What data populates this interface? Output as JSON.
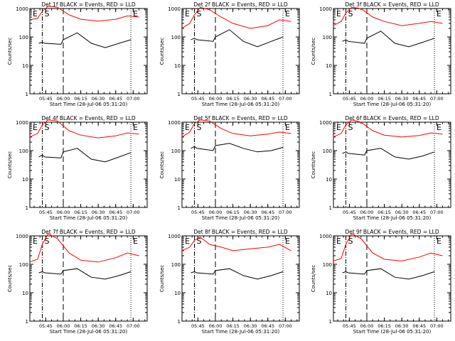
{
  "figure": {
    "xlabel_prefix": "Start Time",
    "ylabel": "Counts/sec",
    "start_time": "28-Jul-06 05:31:20",
    "x_tick_labels": [
      "05:45",
      "06:00",
      "06:15",
      "06:30",
      "06:45",
      "07:00"
    ],
    "y_tick_labels": [
      "1",
      "10",
      "100",
      "1000"
    ],
    "region_letters": [
      "E",
      "S",
      "E"
    ],
    "colors": {
      "events": "#000000",
      "lld": "#ff0000",
      "background": "#ffffff"
    }
  },
  "chart_data": [
    {
      "type": "line",
      "title": "Det 1f BLACK = Events, RED = LLD",
      "y_scale": "log",
      "ylim": [
        1,
        1000
      ],
      "xlim": [
        "05:31:20",
        "07:12:00"
      ],
      "markers": {
        "dash_dot": "05:42",
        "dashed": "06:00",
        "dotted": "06:58"
      },
      "series": [
        {
          "name": "Events",
          "x": [
            "05:39",
            "05:42",
            "05:44",
            "05:58",
            "06:00",
            "06:12",
            "06:24",
            "06:36",
            "06:48",
            "06:58"
          ],
          "y": [
            60,
            65,
            60,
            55,
            80,
            140,
            60,
            42,
            60,
            80
          ]
        },
        {
          "name": "LLD",
          "x": [
            "05:31",
            "05:38",
            "05:42",
            "05:47",
            "05:55",
            "06:05",
            "06:15",
            "06:30",
            "06:45",
            "06:55",
            "07:05"
          ],
          "y": [
            400,
            450,
            800,
            1200,
            1100,
            600,
            420,
            360,
            420,
            550,
            500
          ]
        }
      ]
    },
    {
      "type": "line",
      "title": "Det 2f BLACK = Events, RED = LLD",
      "y_scale": "log",
      "ylim": [
        1,
        1000
      ],
      "xlim": [
        "05:31:20",
        "07:12:00"
      ],
      "markers": {
        "dash_dot": "05:42",
        "dashed": "06:00",
        "dotted": "06:58"
      },
      "series": [
        {
          "name": "Events",
          "x": [
            "05:39",
            "05:42",
            "05:44",
            "05:58",
            "06:00",
            "06:12",
            "06:24",
            "06:36",
            "06:48",
            "06:58"
          ],
          "y": [
            80,
            90,
            80,
            70,
            100,
            180,
            70,
            45,
            70,
            100
          ]
        },
        {
          "name": "LLD",
          "x": [
            "05:31",
            "05:38",
            "05:42",
            "05:47",
            "05:55",
            "06:05",
            "06:15",
            "06:30",
            "06:45",
            "06:55",
            "07:05"
          ],
          "y": [
            200,
            300,
            600,
            1100,
            900,
            500,
            300,
            200,
            250,
            400,
            350
          ]
        }
      ]
    },
    {
      "type": "line",
      "title": "Det 3f BLACK = Events, RED = LLD",
      "y_scale": "log",
      "ylim": [
        1,
        1000
      ],
      "xlim": [
        "05:31:20",
        "07:12:00"
      ],
      "markers": {
        "dash_dot": "05:42",
        "dashed": "06:00",
        "dotted": "06:58"
      },
      "series": [
        {
          "name": "Events",
          "x": [
            "05:39",
            "05:42",
            "05:44",
            "05:58",
            "06:00",
            "06:12",
            "06:24",
            "06:36",
            "06:48",
            "06:58"
          ],
          "y": [
            70,
            80,
            70,
            60,
            90,
            160,
            60,
            45,
            65,
            90
          ]
        },
        {
          "name": "LLD",
          "x": [
            "05:31",
            "05:38",
            "05:42",
            "05:47",
            "05:55",
            "06:05",
            "06:15",
            "06:30",
            "06:45",
            "06:55",
            "07:05"
          ],
          "y": [
            250,
            350,
            700,
            1100,
            1000,
            500,
            350,
            250,
            300,
            350,
            300
          ]
        }
      ]
    },
    {
      "type": "line",
      "title": "Det 4f BLACK = Events, RED = LLD",
      "y_scale": "log",
      "ylim": [
        1,
        1000
      ],
      "xlim": [
        "05:31:20",
        "07:12:00"
      ],
      "markers": {
        "dash_dot": "05:42",
        "dashed": "06:00",
        "dotted": "06:58"
      },
      "series": [
        {
          "name": "Events",
          "x": [
            "05:39",
            "05:42",
            "05:44",
            "05:58",
            "06:00",
            "06:12",
            "06:24",
            "06:36",
            "06:48",
            "06:58"
          ],
          "y": [
            60,
            70,
            60,
            55,
            90,
            120,
            50,
            40,
            60,
            85
          ]
        },
        {
          "name": "LLD",
          "x": [
            "05:31",
            "05:38",
            "05:42",
            "05:47",
            "05:55",
            "06:05",
            "06:15",
            "06:30",
            "06:45",
            "06:55",
            "07:05"
          ],
          "y": [
            300,
            400,
            800,
            1200,
            1100,
            500,
            350,
            280,
            330,
            420,
            380
          ]
        }
      ]
    },
    {
      "type": "line",
      "title": "Det 5f BLACK = Events, RED = LLD",
      "y_scale": "log",
      "ylim": [
        1,
        1000
      ],
      "xlim": [
        "05:31:20",
        "07:12:00"
      ],
      "markers": {
        "dash_dot": "05:42",
        "dashed": "06:00",
        "dotted": "06:58"
      },
      "series": [
        {
          "name": "Events",
          "x": [
            "05:39",
            "05:42",
            "05:44",
            "05:58",
            "06:00",
            "06:12",
            "06:24",
            "06:36",
            "06:48",
            "06:58"
          ],
          "y": [
            120,
            140,
            120,
            100,
            150,
            180,
            120,
            90,
            100,
            130
          ]
        },
        {
          "name": "LLD",
          "x": [
            "05:31",
            "05:38",
            "05:42",
            "05:47",
            "05:55",
            "06:05",
            "06:15",
            "06:30",
            "06:45",
            "06:55",
            "07:05"
          ],
          "y": [
            300,
            450,
            900,
            1200,
            1100,
            600,
            400,
            330,
            380,
            450,
            400
          ]
        }
      ]
    },
    {
      "type": "line",
      "title": "Det 6f BLACK = Events, RED = LLD",
      "y_scale": "log",
      "ylim": [
        1,
        1000
      ],
      "xlim": [
        "05:31:20",
        "07:12:00"
      ],
      "markers": {
        "dash_dot": "05:42",
        "dashed": "06:00",
        "dotted": "06:58"
      },
      "series": [
        {
          "name": "Events",
          "x": [
            "05:39",
            "05:42",
            "05:44",
            "05:58",
            "06:00",
            "06:12",
            "06:24",
            "06:36",
            "06:48",
            "06:58"
          ],
          "y": [
            80,
            90,
            80,
            70,
            100,
            120,
            60,
            50,
            65,
            90
          ]
        },
        {
          "name": "LLD",
          "x": [
            "05:31",
            "05:38",
            "05:42",
            "05:47",
            "05:55",
            "06:05",
            "06:15",
            "06:30",
            "06:45",
            "06:55",
            "07:05"
          ],
          "y": [
            300,
            400,
            800,
            1200,
            1000,
            500,
            350,
            300,
            340,
            420,
            380
          ]
        }
      ]
    },
    {
      "type": "line",
      "title": "Det 7f BLACK = Events, RED = LLD",
      "y_scale": "log",
      "ylim": [
        1,
        1000
      ],
      "xlim": [
        "05:31:20",
        "07:12:00"
      ],
      "markers": {
        "dash_dot": "05:42",
        "dashed": "06:00",
        "dotted": "06:58"
      },
      "series": [
        {
          "name": "Events",
          "x": [
            "05:39",
            "05:42",
            "05:44",
            "05:58",
            "06:00",
            "06:12",
            "06:24",
            "06:36",
            "06:48",
            "06:58"
          ],
          "y": [
            50,
            55,
            50,
            45,
            60,
            70,
            35,
            30,
            40,
            55
          ]
        },
        {
          "name": "LLD",
          "x": [
            "05:31",
            "05:38",
            "05:42",
            "05:47",
            "05:55",
            "06:05",
            "06:15",
            "06:30",
            "06:45",
            "06:55",
            "07:05"
          ],
          "y": [
            120,
            150,
            500,
            1200,
            800,
            250,
            140,
            120,
            170,
            250,
            200
          ]
        }
      ]
    },
    {
      "type": "line",
      "title": "Det 8f BLACK = Events, RED = LLD",
      "y_scale": "log",
      "ylim": [
        1,
        1000
      ],
      "xlim": [
        "05:31:20",
        "07:12:00"
      ],
      "markers": {
        "dash_dot": "05:42",
        "dashed": "06:00",
        "dotted": "06:58"
      },
      "series": [
        {
          "name": "Events",
          "x": [
            "05:39",
            "05:42",
            "05:44",
            "05:58",
            "06:00",
            "06:12",
            "06:24",
            "06:36",
            "06:48",
            "06:58"
          ],
          "y": [
            50,
            55,
            50,
            45,
            60,
            70,
            40,
            30,
            40,
            55
          ]
        },
        {
          "name": "LLD",
          "x": [
            "05:31",
            "05:38",
            "05:42",
            "05:47",
            "05:55",
            "06:05",
            "06:15",
            "06:30",
            "06:45",
            "06:55",
            "07:05"
          ],
          "y": [
            300,
            400,
            700,
            900,
            500,
            400,
            300,
            350,
            400,
            500,
            300
          ]
        }
      ]
    },
    {
      "type": "line",
      "title": "Det 9f BLACK = Events, RED = LLD",
      "y_scale": "log",
      "ylim": [
        1,
        1000
      ],
      "xlim": [
        "05:31:20",
        "07:12:00"
      ],
      "markers": {
        "dash_dot": "05:42",
        "dashed": "06:00",
        "dotted": "06:58"
      },
      "series": [
        {
          "name": "Events",
          "x": [
            "05:39",
            "05:42",
            "05:44",
            "05:58",
            "06:00",
            "06:12",
            "06:24",
            "06:36",
            "06:48",
            "06:58"
          ],
          "y": [
            50,
            55,
            50,
            45,
            60,
            70,
            35,
            30,
            40,
            55
          ]
        },
        {
          "name": "LLD",
          "x": [
            "05:31",
            "05:38",
            "05:42",
            "05:47",
            "05:55",
            "06:05",
            "06:15",
            "06:30",
            "06:45",
            "06:55",
            "07:05"
          ],
          "y": [
            130,
            160,
            500,
            1200,
            800,
            250,
            150,
            130,
            180,
            250,
            200
          ]
        }
      ]
    }
  ]
}
